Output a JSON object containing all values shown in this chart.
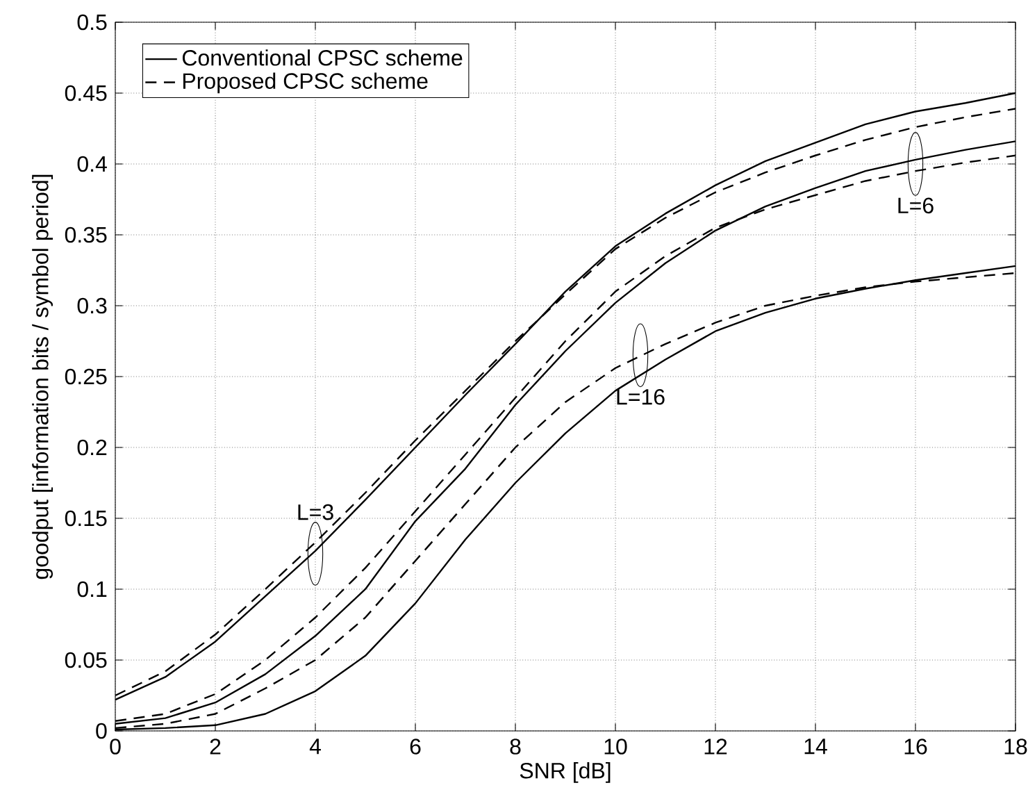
{
  "chart_data": {
    "type": "line",
    "xlabel": "SNR  [dB]",
    "ylabel": "goodput  [information bits / symbol period]",
    "x": [
      0,
      1,
      2,
      3,
      4,
      5,
      6,
      7,
      8,
      9,
      10,
      11,
      12,
      13,
      14,
      15,
      16,
      17,
      18
    ],
    "series": [
      {
        "name": "Conventional CPSC scheme",
        "color": "#000000",
        "line_style": "solid",
        "values": [
          0.022,
          0.038,
          0.063,
          0.095,
          0.127,
          0.163,
          0.2,
          0.237,
          0.273,
          0.31,
          0.342,
          0.365,
          0.385,
          0.402,
          0.415,
          0.428,
          0.437,
          0.443,
          0.45
        ]
      },
      {
        "name": "Proposed CPSC scheme",
        "color": "#000000",
        "line_style": "dashed",
        "values": [
          0.025,
          0.042,
          0.068,
          0.1,
          0.133,
          0.168,
          0.205,
          0.24,
          0.275,
          0.308,
          0.34,
          0.362,
          0.38,
          0.394,
          0.406,
          0.417,
          0.426,
          0.433,
          0.439
        ]
      },
      {
        "color": "#000000",
        "line_style": "solid",
        "values": [
          0.005,
          0.009,
          0.02,
          0.04,
          0.067,
          0.1,
          0.148,
          0.185,
          0.23,
          0.268,
          0.302,
          0.33,
          0.353,
          0.37,
          0.383,
          0.395,
          0.403,
          0.41,
          0.416
        ]
      },
      {
        "color": "#000000",
        "line_style": "dashed",
        "values": [
          0.007,
          0.012,
          0.026,
          0.05,
          0.08,
          0.115,
          0.155,
          0.195,
          0.235,
          0.275,
          0.31,
          0.335,
          0.355,
          0.368,
          0.378,
          0.388,
          0.395,
          0.401,
          0.406
        ]
      },
      {
        "color": "#000000",
        "line_style": "solid",
        "values": [
          0.001,
          0.002,
          0.004,
          0.012,
          0.028,
          0.053,
          0.09,
          0.135,
          0.175,
          0.21,
          0.24,
          0.262,
          0.282,
          0.295,
          0.305,
          0.312,
          0.318,
          0.323,
          0.328
        ]
      },
      {
        "color": "#000000",
        "line_style": "dashed",
        "values": [
          0.002,
          0.005,
          0.012,
          0.03,
          0.05,
          0.08,
          0.12,
          0.16,
          0.2,
          0.232,
          0.256,
          0.273,
          0.288,
          0.3,
          0.307,
          0.313,
          0.317,
          0.32,
          0.323
        ]
      }
    ],
    "annotations": [
      {
        "text": "L=3",
        "x": 4,
        "y": 0.125
      },
      {
        "text": "L=16",
        "x": 10.5,
        "y": 0.265
      },
      {
        "text": "L=6",
        "x": 16,
        "y": 0.4
      }
    ],
    "xlim": [
      0,
      18
    ],
    "ylim": [
      0,
      0.5
    ],
    "xticks": [
      0,
      2,
      4,
      6,
      8,
      10,
      12,
      14,
      16,
      18
    ],
    "yticks": [
      0,
      0.05,
      0.1,
      0.15,
      0.2,
      0.25,
      0.3,
      0.35,
      0.4,
      0.45,
      0.5
    ],
    "grid": true,
    "legend": "top left",
    "marker": "none"
  }
}
